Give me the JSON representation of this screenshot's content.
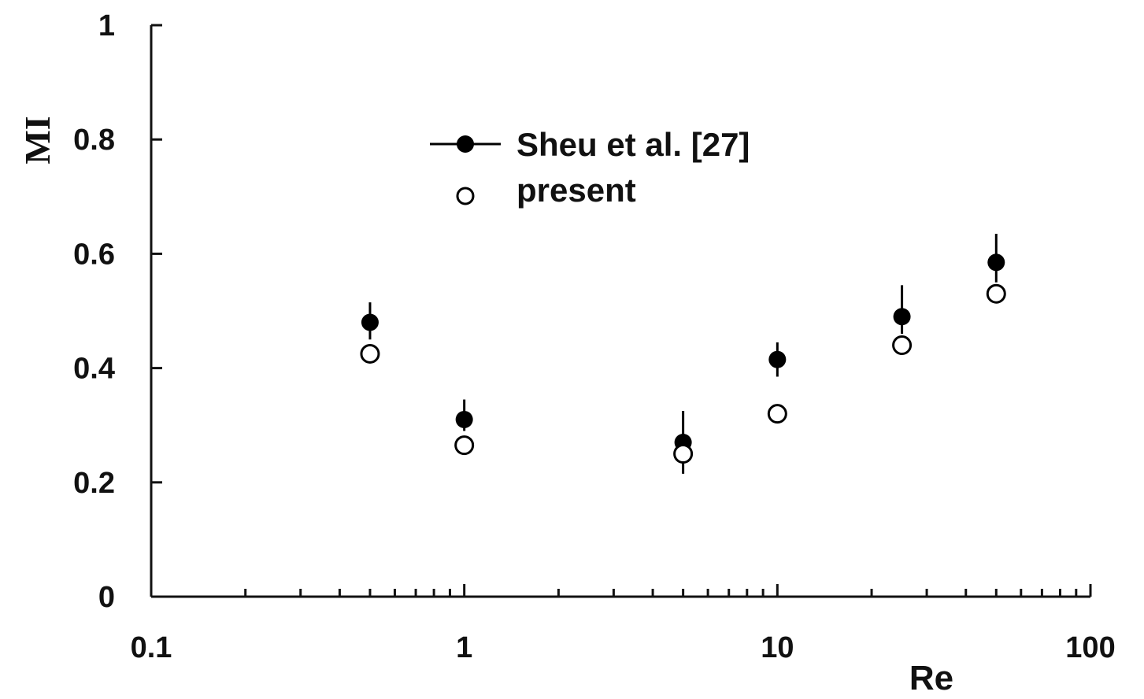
{
  "chart_data": {
    "type": "scatter",
    "title": "",
    "xlabel": "Re",
    "ylabel": "MI",
    "x_scale": "log",
    "xlim": [
      0.1,
      100
    ],
    "ylim": [
      0,
      1
    ],
    "x_ticks": [
      "0.1",
      "1",
      "10",
      "100"
    ],
    "y_ticks": [
      "0",
      "0.2",
      "0.4",
      "0.6",
      "0.8",
      "1"
    ],
    "grid": false,
    "legend_position": "top-center",
    "series": [
      {
        "name": "Sheu et al. [27]",
        "marker": "filled-circle",
        "color": "#000000",
        "points": [
          {
            "x": 0.5,
            "y": 0.48,
            "err_low": 0.45,
            "err_high": 0.515
          },
          {
            "x": 1,
            "y": 0.31,
            "err_low": 0.29,
            "err_high": 0.345
          },
          {
            "x": 5,
            "y": 0.27,
            "err_low": 0.215,
            "err_high": 0.325
          },
          {
            "x": 10,
            "y": 0.415,
            "err_low": 0.385,
            "err_high": 0.445
          },
          {
            "x": 25,
            "y": 0.49,
            "err_low": 0.46,
            "err_high": 0.545
          },
          {
            "x": 50,
            "y": 0.585,
            "err_low": 0.55,
            "err_high": 0.635
          }
        ]
      },
      {
        "name": "present",
        "marker": "open-circle",
        "color": "#000000",
        "points": [
          {
            "x": 0.5,
            "y": 0.425
          },
          {
            "x": 1,
            "y": 0.265
          },
          {
            "x": 5,
            "y": 0.25
          },
          {
            "x": 10,
            "y": 0.32
          },
          {
            "x": 25,
            "y": 0.44
          },
          {
            "x": 50,
            "y": 0.53
          }
        ]
      }
    ]
  }
}
